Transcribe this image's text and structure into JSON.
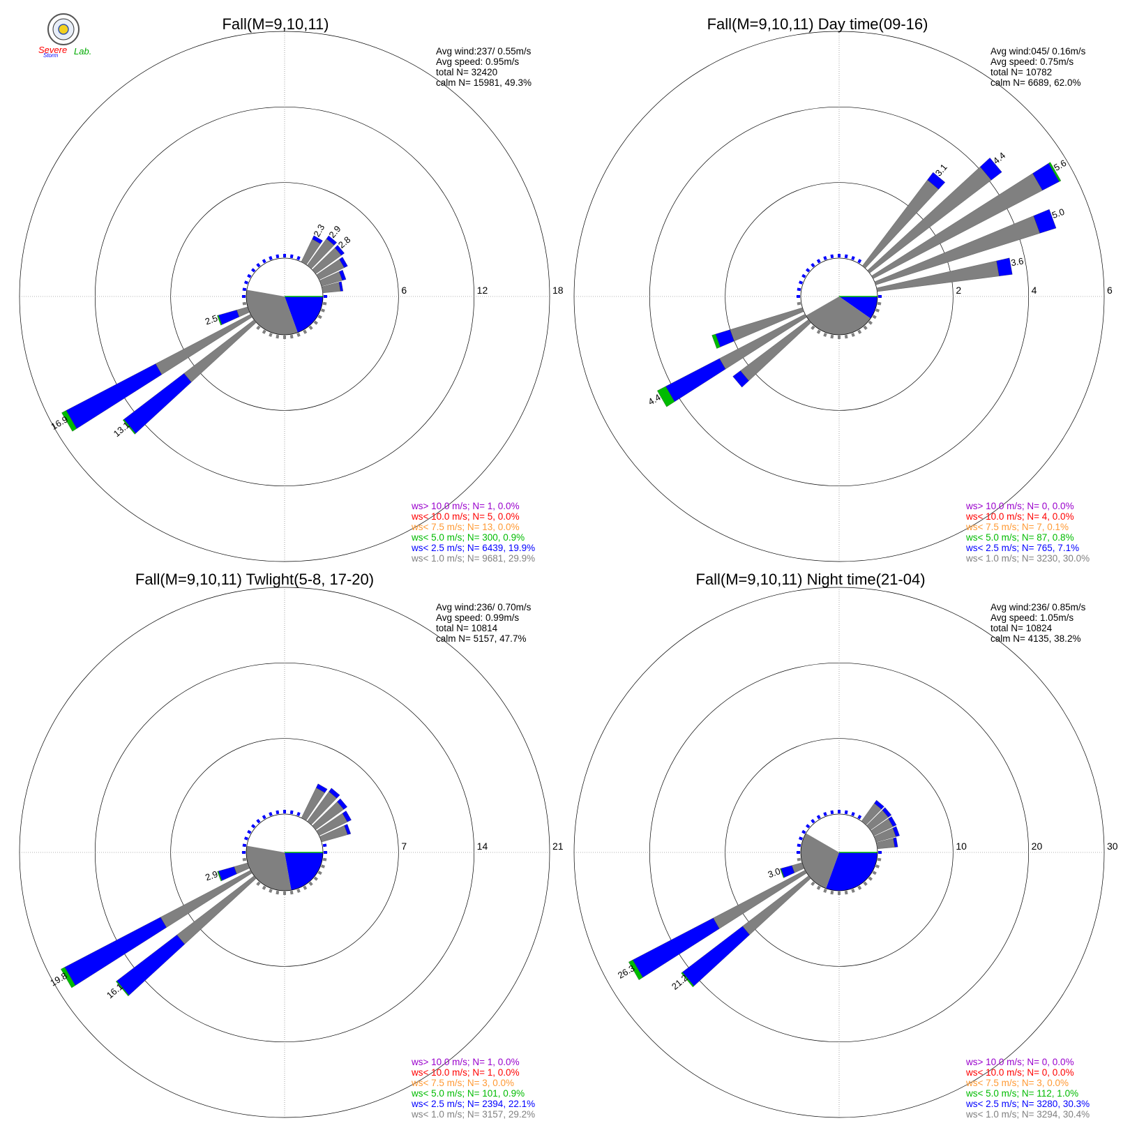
{
  "colors": {
    "gt10": "#9900cc",
    "lt10": "#ff0000",
    "lt7_5": "#ff9933",
    "lt5": "#00bb00",
    "lt2_5": "#0000ff",
    "lt1": "#808080"
  },
  "logo": {
    "text1": "Severe",
    "text2": "Storm",
    "text3": "Lab."
  },
  "chart_data": [
    {
      "type": "windrose",
      "title": "Fall(M=9,10,11)",
      "stats": [
        "Avg wind:237/ 0.55m/s",
        "Avg speed: 0.95m/s",
        "total N=      32420",
        "calm N=  15981,  49.3%"
      ],
      "rings": [
        6,
        12,
        18
      ],
      "rmax": 18,
      "calm_pct": 49.3,
      "legend": [
        "ws> 10.0 m/s; N=     1,  0.0%",
        "ws< 10.0 m/s; N=     5,  0.0%",
        "ws<  7.5 m/s; N=    13,  0.0%",
        "ws<  5.0 m/s; N=   300,  0.9%",
        "ws<  2.5 m/s; N=  6439, 19.9%",
        "ws<  1.0 m/s; N=  9681, 29.9%"
      ],
      "calm_sectors": [
        {
          "from": 90,
          "to": 160,
          "color": "lt2_5"
        },
        {
          "from": 160,
          "to": 280,
          "color": "lt1"
        }
      ],
      "bars": [
        {
          "dir": 30,
          "total": 2.3,
          "b": 0.3,
          "g": 0.0,
          "label": "2.3"
        },
        {
          "dir": 40,
          "total": 2.9,
          "b": 0.3,
          "g": 0.0,
          "label": "2.9"
        },
        {
          "dir": 50,
          "total": 2.8,
          "b": 0.3,
          "g": 0.0,
          "label": "2.8"
        },
        {
          "dir": 60,
          "total": 2.5,
          "b": 0.3,
          "g": 0.0,
          "label": ""
        },
        {
          "dir": 70,
          "total": 2.0,
          "b": 0.3,
          "g": 0.0,
          "label": ""
        },
        {
          "dir": 80,
          "total": 1.6,
          "b": 0.2,
          "g": 0.0,
          "label": ""
        },
        {
          "dir": 240,
          "total": 16.9,
          "b": 8.0,
          "g": 0.4,
          "label": "16.9"
        },
        {
          "dir": 230,
          "total": 13.1,
          "b": 6.0,
          "g": 0.1,
          "label": "13.1"
        },
        {
          "dir": 250,
          "total": 2.5,
          "b": 1.5,
          "g": 0.1,
          "label": "2.5"
        }
      ]
    },
    {
      "type": "windrose",
      "title": "Fall(M=9,10,11) Day time(09-16)",
      "stats": [
        "Avg wind:045/ 0.16m/s",
        "Avg speed: 0.75m/s",
        "total N=      10782",
        "calm N=   6689,  62.0%"
      ],
      "rings": [
        2,
        4,
        6
      ],
      "rmax": 6,
      "calm_pct": 62.0,
      "legend": [
        "ws> 10.0 m/s; N=     0,  0.0%",
        "ws< 10.0 m/s; N=     4,  0.0%",
        "ws<  7.5 m/s; N=     7,  0.1%",
        "ws<  5.0 m/s; N=    87,  0.8%",
        "ws<  2.5 m/s; N=   765,  7.1%",
        "ws<  1.0 m/s; N=  3230, 30.0%"
      ],
      "calm_sectors": [
        {
          "from": 90,
          "to": 125,
          "color": "lt2_5"
        },
        {
          "from": 125,
          "to": 240,
          "color": "lt1"
        }
      ],
      "bars": [
        {
          "dir": 40,
          "total": 3.1,
          "b": 0.25,
          "g": 0.0,
          "label": "3.1"
        },
        {
          "dir": 50,
          "total": 4.4,
          "b": 0.35,
          "g": 0.0,
          "label": "4.4"
        },
        {
          "dir": 60,
          "total": 5.6,
          "b": 0.5,
          "g": 0.05,
          "label": "5.6"
        },
        {
          "dir": 70,
          "total": 5.0,
          "b": 0.45,
          "g": 0.0,
          "label": "5.0"
        },
        {
          "dir": 80,
          "total": 3.6,
          "b": 0.35,
          "g": 0.0,
          "label": "3.6"
        },
        {
          "dir": 240,
          "total": 4.4,
          "b": 1.6,
          "g": 0.25,
          "label": "4.4"
        },
        {
          "dir": 230,
          "total": 2.5,
          "b": 0.25,
          "g": 0.0,
          "label": ""
        },
        {
          "dir": 250,
          "total": 2.5,
          "b": 0.4,
          "g": 0.1,
          "label": ""
        }
      ]
    },
    {
      "type": "windrose",
      "title": "Fall(M=9,10,11) Twlight(5-8, 17-20)",
      "stats": [
        "Avg wind:236/ 0.70m/s",
        "Avg speed: 0.99m/s",
        "total N=      10814",
        "calm N=   5157,  47.7%"
      ],
      "rings": [
        7,
        14,
        21
      ],
      "rmax": 21,
      "calm_pct": 47.7,
      "legend": [
        "ws> 10.0 m/s; N=     1,  0.0%",
        "ws< 10.0 m/s; N=     1,  0.0%",
        "ws<  7.5 m/s; N=     3,  0.0%",
        "ws<  5.0 m/s; N=   101,  0.9%",
        "ws<  2.5 m/s; N=  2394, 22.1%",
        "ws<  1.0 m/s; N=  3157, 29.2%"
      ],
      "calm_sectors": [
        {
          "from": 90,
          "to": 170,
          "color": "lt2_5"
        },
        {
          "from": 170,
          "to": 280,
          "color": "lt1"
        }
      ],
      "bars": [
        {
          "dir": 30,
          "total": 3.5,
          "b": 0.4,
          "g": 0.0,
          "label": ""
        },
        {
          "dir": 40,
          "total": 3.8,
          "b": 0.4,
          "g": 0.0,
          "label": ""
        },
        {
          "dir": 50,
          "total": 3.6,
          "b": 0.4,
          "g": 0.0,
          "label": ""
        },
        {
          "dir": 60,
          "total": 3.3,
          "b": 0.4,
          "g": 0.0,
          "label": ""
        },
        {
          "dir": 70,
          "total": 2.8,
          "b": 0.3,
          "g": 0.0,
          "label": ""
        },
        {
          "dir": 240,
          "total": 19.8,
          "b": 10.0,
          "g": 0.4,
          "label": "19.8"
        },
        {
          "dir": 230,
          "total": 16.1,
          "b": 7.0,
          "g": 0.1,
          "label": "16.1"
        },
        {
          "dir": 250,
          "total": 2.9,
          "b": 1.5,
          "g": 0.1,
          "label": "2.9"
        }
      ]
    },
    {
      "type": "windrose",
      "title": "Fall(M=9,10,11) Night time(21-04)",
      "stats": [
        "Avg wind:236/ 0.85m/s",
        "Avg speed: 1.05m/s",
        "total N=      10824",
        "calm N=   4135,  38.2%"
      ],
      "rings": [
        10,
        20,
        30
      ],
      "rmax": 30,
      "calm_pct": 38.2,
      "legend": [
        "ws> 10.0 m/s; N=     0,  0.0%",
        "ws< 10.0 m/s; N=     0,  0.0%",
        "ws<  7.5 m/s; N=     3,  0.0%",
        "ws<  5.0 m/s; N=   112,  1.0%",
        "ws<  2.5 m/s; N=  3280, 30.3%",
        "ws<  1.0 m/s; N=  3294, 30.4%"
      ],
      "calm_sectors": [
        {
          "from": 90,
          "to": 200,
          "color": "lt2_5"
        },
        {
          "from": 200,
          "to": 300,
          "color": "lt1"
        }
      ],
      "bars": [
        {
          "dir": 40,
          "total": 3.4,
          "b": 0.5,
          "g": 0.0,
          "label": ""
        },
        {
          "dir": 50,
          "total": 3.4,
          "b": 0.5,
          "g": 0.0,
          "label": ""
        },
        {
          "dir": 60,
          "total": 3.3,
          "b": 0.5,
          "g": 0.0,
          "label": ""
        },
        {
          "dir": 70,
          "total": 3.2,
          "b": 0.5,
          "g": 0.0,
          "label": ""
        },
        {
          "dir": 80,
          "total": 2.7,
          "b": 0.4,
          "g": 0.0,
          "label": ""
        },
        {
          "dir": 240,
          "total": 26.3,
          "b": 12.0,
          "g": 0.6,
          "label": "26.3"
        },
        {
          "dir": 230,
          "total": 21.2,
          "b": 10.0,
          "g": 0.2,
          "label": "21.2"
        },
        {
          "dir": 250,
          "total": 3.0,
          "b": 1.5,
          "g": 0.1,
          "label": "3.0"
        }
      ]
    }
  ]
}
